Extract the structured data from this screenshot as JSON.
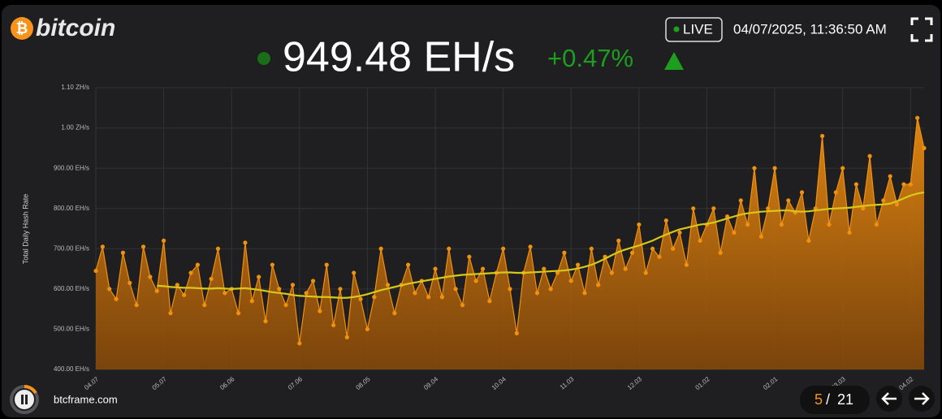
{
  "header": {
    "logo_symbol": "₿",
    "logo_text": "bitcoin",
    "live": "LIVE",
    "timestamp": "04/07/2025, 11:36:50 AM",
    "current_value": "949.48 EH/s",
    "change": "+0.47%"
  },
  "footer": {
    "site": "btcframe.com",
    "page": "5",
    "separator": "/",
    "total": "21"
  },
  "chart_data": {
    "type": "line",
    "y_label": "Total Daily Hash Rate",
    "categories": [
      "04.07",
      null,
      null,
      null,
      null,
      null,
      null,
      null,
      null,
      null,
      "05.07",
      null,
      null,
      null,
      null,
      null,
      null,
      null,
      null,
      null,
      "06.06",
      null,
      null,
      null,
      null,
      null,
      null,
      null,
      null,
      null,
      "07.06",
      null,
      null,
      null,
      null,
      null,
      null,
      null,
      null,
      null,
      "08.05",
      null,
      null,
      null,
      null,
      null,
      null,
      null,
      null,
      null,
      "09.04",
      null,
      null,
      null,
      null,
      null,
      null,
      null,
      null,
      null,
      "10.04",
      null,
      null,
      null,
      null,
      null,
      null,
      null,
      null,
      null,
      "11.03",
      null,
      null,
      null,
      null,
      null,
      null,
      null,
      null,
      null,
      "12.03",
      null,
      null,
      null,
      null,
      null,
      null,
      null,
      null,
      null,
      "01.02",
      null,
      null,
      null,
      null,
      null,
      null,
      null,
      null,
      null,
      "02.01",
      null,
      null,
      null,
      null,
      null,
      null,
      null,
      null,
      null,
      "03.03",
      null,
      null,
      null,
      null,
      null,
      null,
      null,
      null,
      null,
      "04.02",
      null,
      null
    ],
    "series": [
      {
        "color": "#f0900f",
        "values": [
          645,
          705,
          600,
          575,
          690,
          615,
          560,
          705,
          630,
          595,
          720,
          540,
          610,
          585,
          640,
          660,
          560,
          625,
          700,
          590,
          600,
          540,
          715,
          570,
          630,
          520,
          660,
          600,
          560,
          610,
          465,
          590,
          620,
          545,
          660,
          510,
          600,
          480,
          640,
          575,
          500,
          580,
          700,
          610,
          540,
          610,
          660,
          590,
          620,
          580,
          650,
          580,
          700,
          600,
          560,
          680,
          620,
          650,
          570,
          640,
          700,
          600,
          490,
          640,
          705,
          590,
          650,
          600,
          640,
          690,
          620,
          660,
          590,
          700,
          610,
          680,
          640,
          720,
          650,
          690,
          760,
          640,
          700,
          680,
          770,
          700,
          740,
          660,
          800,
          720,
          760,
          800,
          690,
          780,
          740,
          820,
          760,
          900,
          730,
          800,
          900,
          760,
          820,
          790,
          840,
          720,
          800,
          980,
          760,
          840,
          900,
          740,
          860,
          800,
          930,
          760,
          820,
          880,
          810,
          860,
          860,
          1025,
          950
        ]
      },
      {
        "color": "#d8c81a",
        "values": [
          null,
          null,
          null,
          null,
          null,
          null,
          null,
          null,
          null,
          608,
          607,
          605,
          604,
          603,
          603,
          602,
          601,
          601,
          602,
          601,
          600,
          601,
          602,
          600,
          598,
          595,
          592,
          590,
          588,
          585,
          583,
          582,
          581,
          580,
          580,
          579,
          578,
          578,
          580,
          583,
          587,
          592,
          597,
          601,
          605,
          609,
          613,
          616,
          619,
          622,
          625,
          628,
          631,
          633,
          635,
          636,
          637,
          638,
          639,
          640,
          641,
          641,
          640,
          640,
          641,
          642,
          643,
          644,
          645,
          646,
          648,
          651,
          655,
          660,
          667,
          675,
          684,
          692,
          698,
          703,
          708,
          714,
          720,
          728,
          735,
          742,
          748,
          752,
          756,
          760,
          762,
          765,
          770,
          775,
          780,
          785,
          788,
          790,
          792,
          793,
          794,
          795,
          795,
          793,
          792,
          793,
          795,
          797,
          799,
          800,
          801,
          802,
          804,
          806,
          808,
          809,
          810,
          812,
          818,
          825,
          832,
          837,
          840
        ]
      }
    ],
    "ylim": [
      400,
      1100
    ],
    "yticks": [
      {
        "value": 400,
        "label": "400.00 EH/s"
      },
      {
        "value": 500,
        "label": "500.00 EH/s"
      },
      {
        "value": 600,
        "label": "600.00 EH/s"
      },
      {
        "value": 700,
        "label": "700.00 EH/s"
      },
      {
        "value": 800,
        "label": "800.00 EH/s"
      },
      {
        "value": 900,
        "label": "900.00 EH/s"
      },
      {
        "value": 1000,
        "label": "1.00 ZH/s"
      },
      {
        "value": 1100,
        "label": "1.10 ZH/s"
      }
    ],
    "grid": true
  }
}
